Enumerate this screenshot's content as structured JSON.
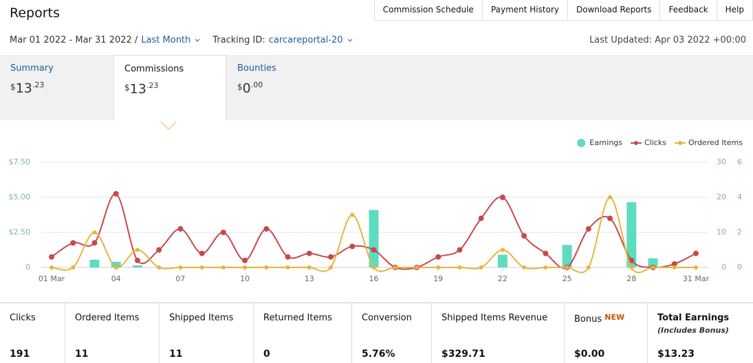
{
  "header": {
    "title": "Reports",
    "nav": [
      "Commission Schedule",
      "Payment History",
      "Download Reports",
      "Feedback",
      "Help"
    ]
  },
  "filters": {
    "date_range": "Mar 01 2022 - Mar 31 2022 /",
    "period": "Last Month",
    "tracking_label": "Tracking ID:",
    "tracking_id": "carcareportal-20",
    "last_updated": "Last Updated: Apr 03 2022 +00:00"
  },
  "tabs": [
    {
      "label": "Summary",
      "currency": "$",
      "whole": "13",
      "fraction": ".23"
    },
    {
      "label": "Commissions",
      "currency": "$",
      "whole": "13",
      "fraction": ".23"
    },
    {
      "label": "Bounties",
      "currency": "$",
      "whole": "0",
      "fraction": ".00"
    }
  ],
  "chart_data": {
    "type": "combo",
    "categories": [
      "01 Mar",
      null,
      null,
      "04",
      null,
      null,
      "07",
      null,
      null,
      "10",
      null,
      null,
      "13",
      null,
      null,
      "16",
      null,
      null,
      "19",
      null,
      null,
      "22",
      null,
      null,
      "25",
      null,
      null,
      "28",
      null,
      null,
      "31 Mar"
    ],
    "series": [
      {
        "name": "Earnings",
        "type": "bar",
        "axis": "y",
        "color": "#5ddcc0",
        "values": [
          0,
          0,
          0.55,
          0.4,
          0.15,
          0,
          0,
          0,
          0,
          0,
          0,
          0,
          0,
          0,
          0,
          4.1,
          0,
          0,
          0,
          0,
          0,
          0.9,
          0,
          0,
          1.6,
          0,
          0,
          4.65,
          0.65,
          0,
          0
        ]
      },
      {
        "name": "Clicks",
        "type": "line",
        "axis": "y2",
        "color": "#c9474a",
        "values": [
          3,
          7,
          7,
          21,
          2,
          5,
          11,
          4,
          10,
          2,
          11,
          3,
          4,
          3,
          6,
          5,
          0,
          0,
          3,
          5,
          14,
          20,
          9,
          4,
          0,
          11,
          14,
          2,
          0,
          1,
          4
        ]
      },
      {
        "name": "Ordered Items",
        "type": "line",
        "axis": "y3",
        "color": "#e8b43c",
        "values": [
          0,
          0,
          2,
          0,
          1,
          0,
          0,
          0,
          0,
          0,
          0,
          0,
          0,
          0,
          3,
          0,
          0,
          0,
          0,
          0,
          0,
          1,
          0,
          0,
          0,
          0,
          4,
          0,
          0,
          0,
          0
        ]
      }
    ],
    "ylim": [
      0,
      7.5
    ],
    "yticks": [
      0,
      {
        "value": 2.5,
        "label": "$2.50"
      },
      {
        "value": 5,
        "label": "$5.00"
      },
      {
        "value": 7.5,
        "label": "$7.50"
      }
    ],
    "y2lim": [
      0,
      30
    ],
    "y2ticks": [
      0,
      10,
      20,
      30
    ],
    "y3lim": [
      0,
      6
    ],
    "y3ticks": [
      0,
      2,
      4,
      6
    ],
    "grid": true,
    "legend": "top-right"
  },
  "totals": [
    {
      "label": "Clicks",
      "value": "191"
    },
    {
      "label": "Ordered Items",
      "value": "11"
    },
    {
      "label": "Shipped Items",
      "value": "11"
    },
    {
      "label": "Returned Items",
      "value": "0"
    },
    {
      "label": "Conversion",
      "value": "5.76%"
    },
    {
      "label": "Shipped Items Revenue",
      "value": "$329.71"
    },
    {
      "label": "Bonus",
      "badge": "NEW",
      "value": "$0.00"
    },
    {
      "label": "Total Earnings",
      "note": "(Includes Bonus)",
      "value": "$13.23"
    }
  ]
}
